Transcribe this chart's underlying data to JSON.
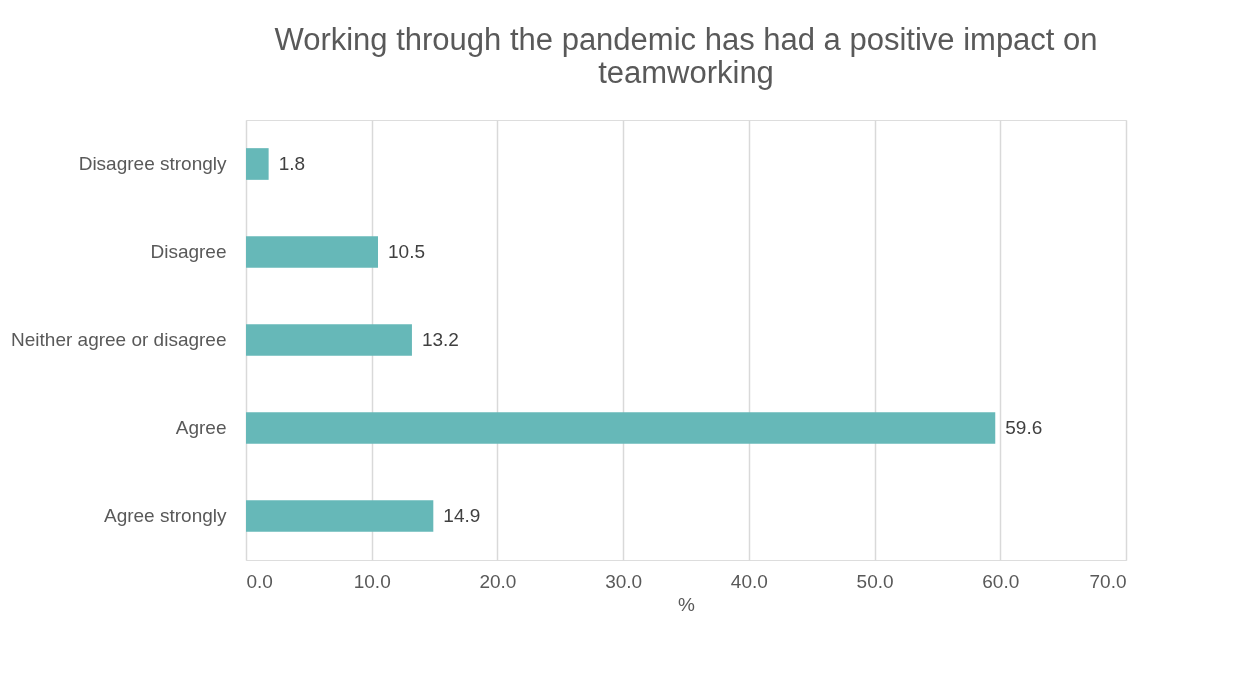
{
  "chart_data": {
    "type": "bar",
    "orientation": "horizontal",
    "title": "Working through the pandemic has had a positive impact on teamworking",
    "xlabel": "%",
    "categories": [
      "Disagree strongly",
      "Disagree",
      "Neither agree or disagree",
      "Agree",
      "Agree strongly"
    ],
    "values": [
      1.8,
      10.5,
      13.2,
      59.6,
      14.9
    ],
    "color": "#66b8b8",
    "data_labels": true,
    "xlim": [
      0,
      70
    ],
    "xticks": [
      {
        "value": 0,
        "label": "0.0"
      },
      {
        "value": 10,
        "label": "10.0"
      },
      {
        "value": 20,
        "label": "20.0"
      },
      {
        "value": 30,
        "label": "30.0"
      },
      {
        "value": 40,
        "label": "40.0"
      },
      {
        "value": 50,
        "label": "50.0"
      },
      {
        "value": 60,
        "label": "60.0"
      },
      {
        "value": 70,
        "label": "70.0"
      }
    ],
    "grid": "x"
  }
}
